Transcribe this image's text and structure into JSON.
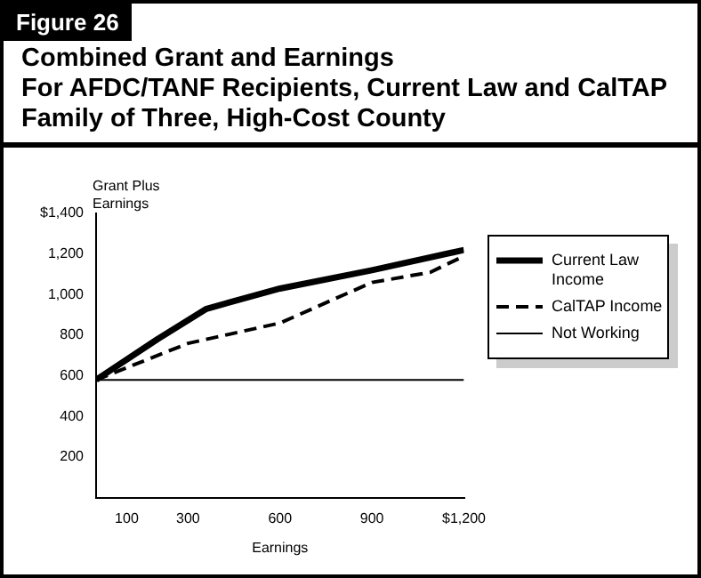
{
  "chart_data": {
    "type": "line",
    "title": "Combined Grant and Earnings\nFor AFDC/TANF Recipients, Current Law and CalTAP\nFamily of Three, High-Cost County",
    "annotations": [
      "Figure 26"
    ],
    "xlabel": "Earnings",
    "ylabel": "Grant Plus\nEarnings",
    "xlim": [
      0,
      1200
    ],
    "xticks": [
      100,
      300,
      600,
      900,
      {
        "value": 1200,
        "label": "$1,200"
      }
    ],
    "ylim": [
      0,
      1400
    ],
    "yticks": [
      200,
      400,
      600,
      800,
      {
        "value": 1000,
        "label": "1,000"
      },
      {
        "value": 1200,
        "label": "1,200"
      },
      {
        "value": 1400,
        "label": "$1,400"
      }
    ],
    "series": [
      {
        "name": "Current Law\nIncome",
        "color": "#000000",
        "line_style": "solid",
        "x": [
          0,
          200,
          360,
          600,
          900,
          1200
        ],
        "values": [
          580,
          780,
          930,
          1030,
          1120,
          1220
        ]
      },
      {
        "name": "CalTAP Income",
        "color": "#000000",
        "line_style": "dashed",
        "x": [
          0,
          300,
          600,
          900,
          1090,
          1200
        ],
        "values": [
          580,
          760,
          860,
          1060,
          1110,
          1190
        ]
      },
      {
        "name": "Not Working",
        "color": "#000000",
        "line_style": "solid",
        "x": [
          0,
          1200
        ],
        "values": [
          580,
          580
        ]
      }
    ],
    "legend": "right",
    "grid": false,
    "marker": "none"
  }
}
